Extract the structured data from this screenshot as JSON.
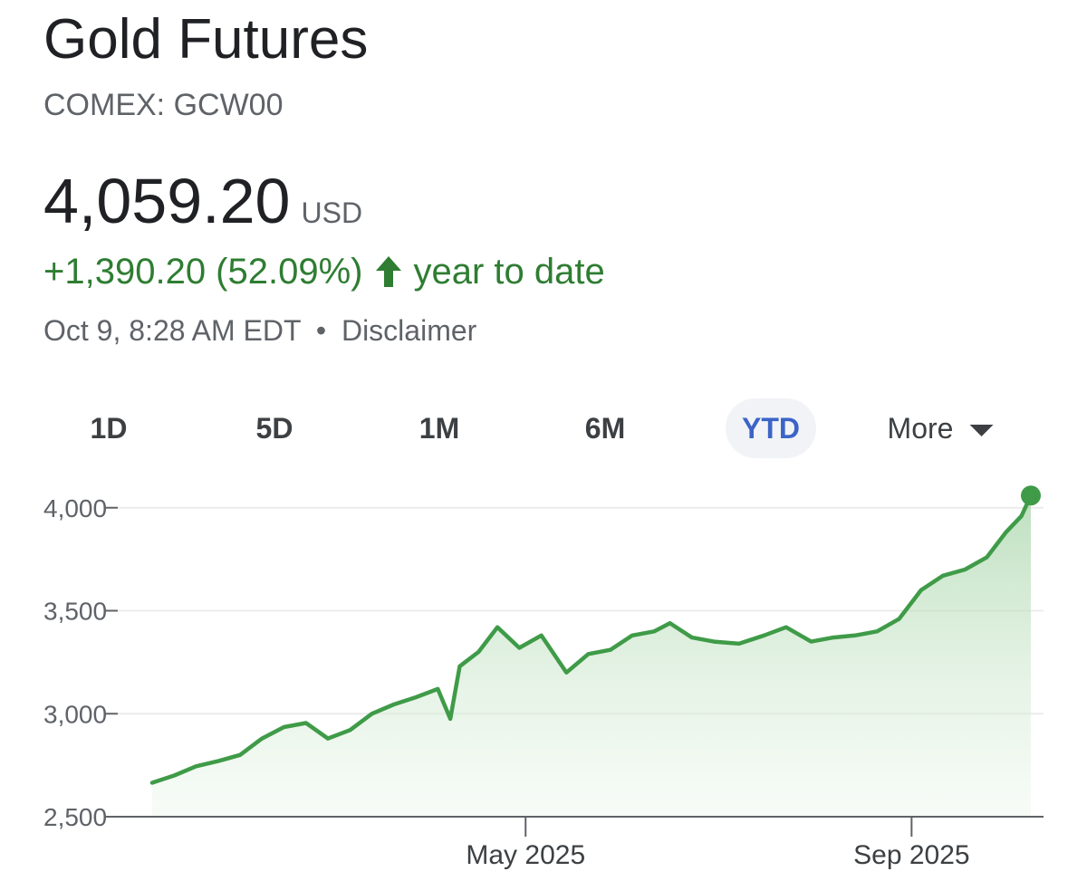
{
  "header": {
    "title": "Gold Futures",
    "exchange": "COMEX: GCW00"
  },
  "quote": {
    "price": "4,059.20",
    "currency": "USD",
    "change": "+1,390.20 (52.09%)",
    "change_direction": "up-arrow-icon",
    "change_period": "year to date",
    "timestamp": "Oct 9, 8:28 AM EDT",
    "separator": "•",
    "disclaimer": "Disclaimer"
  },
  "range_tabs": [
    {
      "label": "1D",
      "active": false
    },
    {
      "label": "5D",
      "active": false
    },
    {
      "label": "1M",
      "active": false
    },
    {
      "label": "6M",
      "active": false
    },
    {
      "label": "YTD",
      "active": true
    },
    {
      "label": "More",
      "active": false,
      "icon": "caret-down-icon"
    }
  ],
  "colors": {
    "up": "#2e7d32",
    "line": "#3f9b48",
    "fill": "#dcefdc",
    "active_tab": "#3c64c8",
    "muted_text": "#5f6368"
  },
  "chart_data": {
    "type": "area",
    "x": [
      "2025-01-02",
      "2025-01-09",
      "2025-01-16",
      "2025-01-23",
      "2025-01-30",
      "2025-02-06",
      "2025-02-13",
      "2025-02-20",
      "2025-02-27",
      "2025-03-06",
      "2025-03-13",
      "2025-03-20",
      "2025-03-27",
      "2025-04-03",
      "2025-04-07",
      "2025-04-10",
      "2025-04-16",
      "2025-04-22",
      "2025-04-29",
      "2025-05-06",
      "2025-05-14",
      "2025-05-21",
      "2025-05-28",
      "2025-06-04",
      "2025-06-11",
      "2025-06-16",
      "2025-06-23",
      "2025-06-30",
      "2025-07-08",
      "2025-07-16",
      "2025-07-23",
      "2025-07-31",
      "2025-08-07",
      "2025-08-14",
      "2025-08-21",
      "2025-08-28",
      "2025-09-04",
      "2025-09-11",
      "2025-09-18",
      "2025-09-25",
      "2025-10-01",
      "2025-10-06",
      "2025-10-09"
    ],
    "series": [
      {
        "values": [
          2665,
          2700,
          2745,
          2770,
          2800,
          2880,
          2935,
          2955,
          2880,
          2920,
          3000,
          3045,
          3080,
          3120,
          2975,
          3230,
          3300,
          3420,
          3320,
          3380,
          3200,
          3290,
          3310,
          3380,
          3400,
          3440,
          3370,
          3350,
          3340,
          3380,
          3420,
          3350,
          3370,
          3380,
          3400,
          3460,
          3600,
          3670,
          3700,
          3760,
          3880,
          3960,
          4059.2
        ]
      }
    ],
    "ylim": [
      2500,
      4100
    ],
    "yticks": [
      "2,500",
      "3,000",
      "3,500",
      "4,000"
    ],
    "ytick_values": [
      2500,
      3000,
      3500,
      4000
    ],
    "xticks": [
      "May 2025",
      "Sep 2025"
    ],
    "xtick_dates": [
      "2025-05-01",
      "2025-09-01"
    ],
    "xlim": [
      "2025-01-02",
      "2025-10-09"
    ],
    "grid": true,
    "last_point_marker": true
  }
}
